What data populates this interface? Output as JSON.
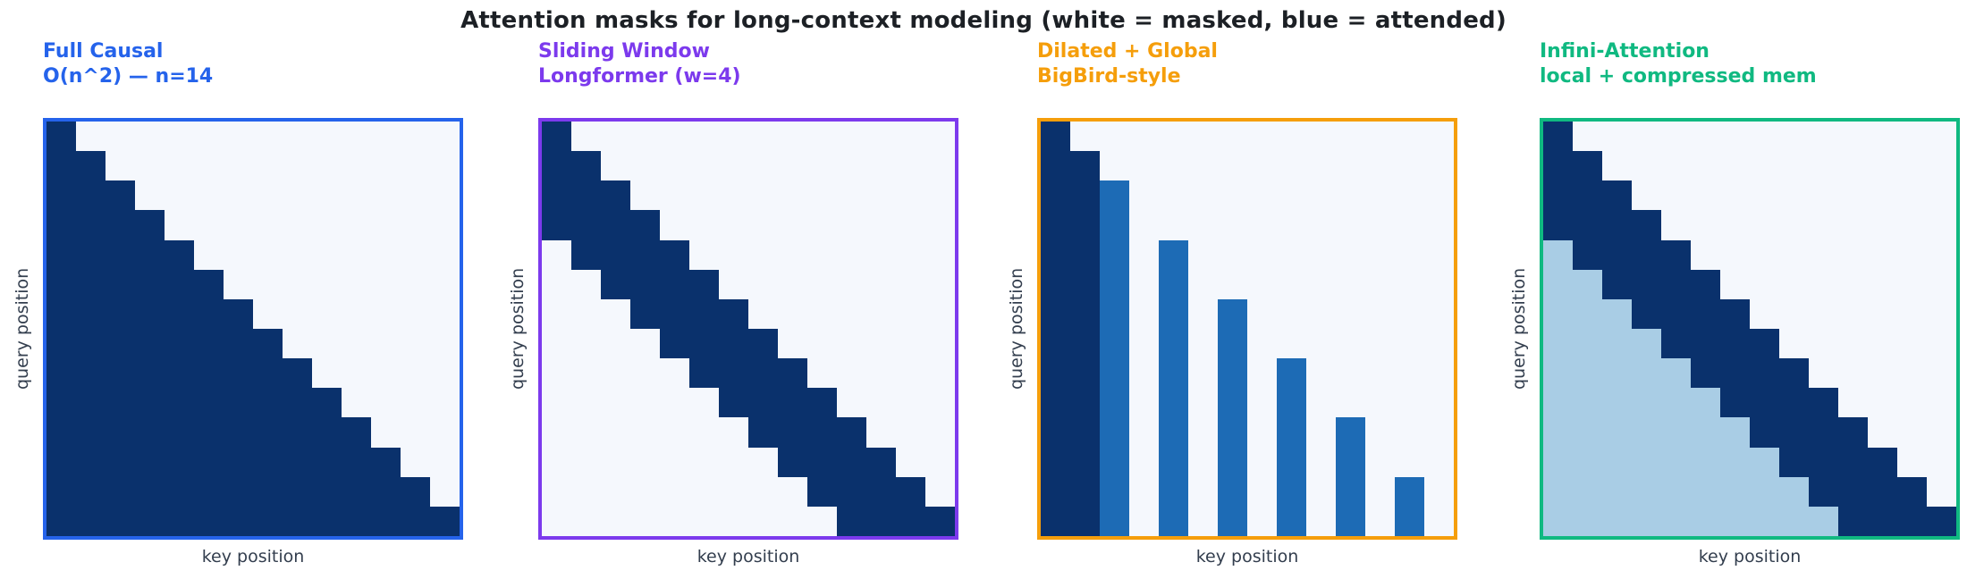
{
  "chart_data": {
    "type": "heatmap",
    "figure_title": "Attention masks for long-context modeling (white = masked, blue = attended)",
    "n": 14,
    "legend_note": "white = masked, blue = attended",
    "cell_colors": {
      "D": "#0a316c",
      "M": "#1d6bb5",
      "L": "#a9cde5",
      ".": "#f5f8fd"
    },
    "cell_legend": {
      "D": "attended (dark navy)",
      "M": "dilated/global attended (medium blue)",
      "L": "compressed memory (light blue)",
      ".": "masked (near-white)"
    },
    "panels": [
      {
        "id": "full-causal",
        "title_line1": "Full Causal",
        "title_line2": "O(n^2) — n=14",
        "accent": "#2563eb",
        "xlabel": "key position",
        "ylabel": "query position",
        "mask": [
          "D.............",
          "DD............",
          "DDD...........",
          "DDDD..........",
          "DDDDD.........",
          "DDDDDD........",
          "DDDDDDD.......",
          "DDDDDDDD......",
          "DDDDDDDDD.....",
          "DDDDDDDDDD....",
          "DDDDDDDDDDD...",
          "DDDDDDDDDDDD..",
          "DDDDDDDDDDDDD.",
          "DDDDDDDDDDDDDD"
        ]
      },
      {
        "id": "sliding-window",
        "title_line1": "Sliding Window",
        "title_line2": "Longformer (w=4)",
        "accent": "#7c3aed",
        "xlabel": "key position",
        "ylabel": "query position",
        "mask": [
          "D.............",
          "DD............",
          "DDD...........",
          "DDDD..........",
          ".DDDD.........",
          "..DDDD........",
          "...DDDD.......",
          "....DDDD......",
          ".....DDDD.....",
          "......DDDD....",
          ".......DDDD...",
          "........DDDD..",
          ".........DDDD.",
          "..........DDDD"
        ]
      },
      {
        "id": "dilated-global",
        "title_line1": "Dilated + Global",
        "title_line2": "BigBird-style",
        "accent": "#f59e0b",
        "xlabel": "key position",
        "ylabel": "query position",
        "mask": [
          "D.............",
          "DD............",
          "DDM...........",
          "DDM...........",
          "DDM.M.........",
          "DDM.M.........",
          "DDM.M.M.......",
          "DDM.M.M.......",
          "DDM.M.M.M.....",
          "DDM.M.M.M.....",
          "DDM.M.M.M.M...",
          "DDM.M.M.M.M...",
          "DDM.M.M.M.M.M.",
          "DDM.M.M.M.M.M."
        ]
      },
      {
        "id": "infini-attention",
        "title_line1": "Infini-Attention",
        "title_line2": "local + compressed mem",
        "accent": "#10b981",
        "xlabel": "key position",
        "ylabel": "query position",
        "mask": [
          "D.............",
          "DD............",
          "DDD...........",
          "DDDD..........",
          "LDDDD.........",
          "LLDDDD........",
          "LLLDDDD.......",
          "LLLLDDDD......",
          "LLLLLDDDD.....",
          "LLLLLLDDDD....",
          "LLLLLLLDDDD...",
          "LLLLLLLLDDDD..",
          "LLLLLLLLLDDDD.",
          "LLLLLLLLLLDDDD"
        ]
      }
    ]
  }
}
